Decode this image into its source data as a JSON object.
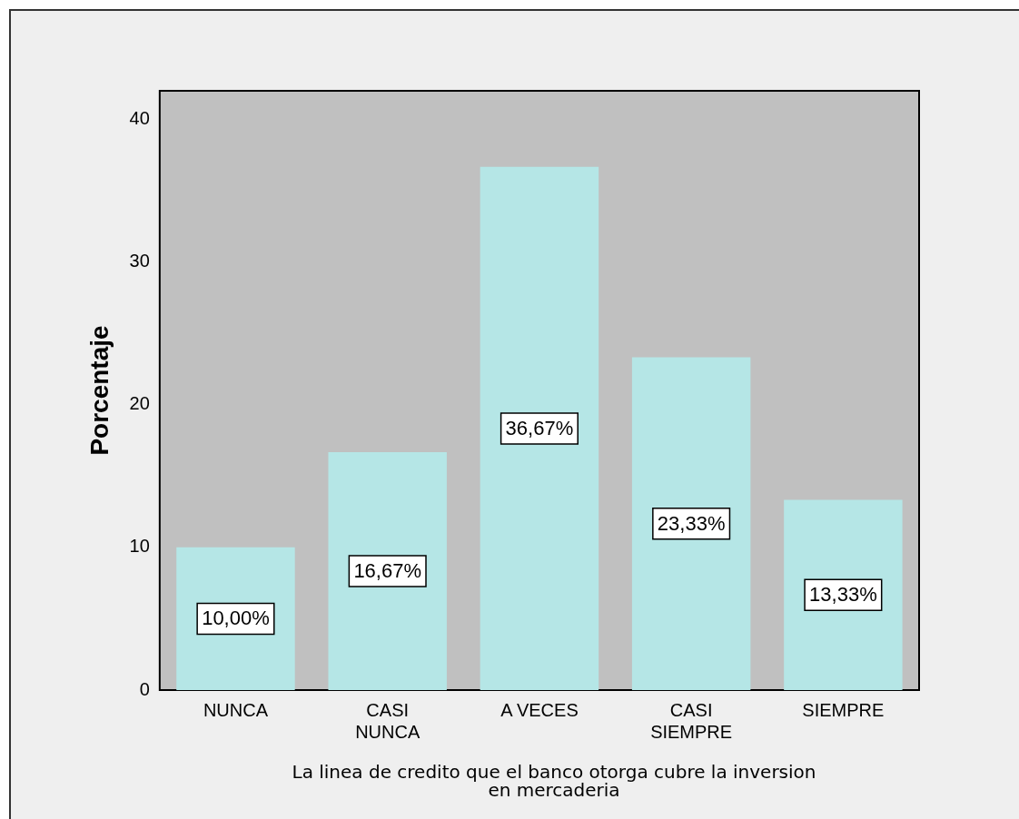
{
  "chart_data": {
    "type": "bar",
    "categories": [
      "NUNCA",
      "CASI NUNCA",
      "A VECES",
      "CASI SIEMPRE",
      "SIEMPRE"
    ],
    "values": [
      10.0,
      16.67,
      36.67,
      23.33,
      13.33
    ],
    "value_labels": [
      "10,00%",
      "16,67%",
      "36,67%",
      "23,33%",
      "13,33%"
    ],
    "color": "#b5e6e6",
    "ylabel": "Porcentaje",
    "xlabel": "La linea de credito que el banco otorga cubre la inversion en mercaderia",
    "ylim": [
      0,
      42
    ],
    "yticks": [
      0,
      10,
      20,
      30,
      40
    ],
    "grid": false,
    "legend": false
  }
}
